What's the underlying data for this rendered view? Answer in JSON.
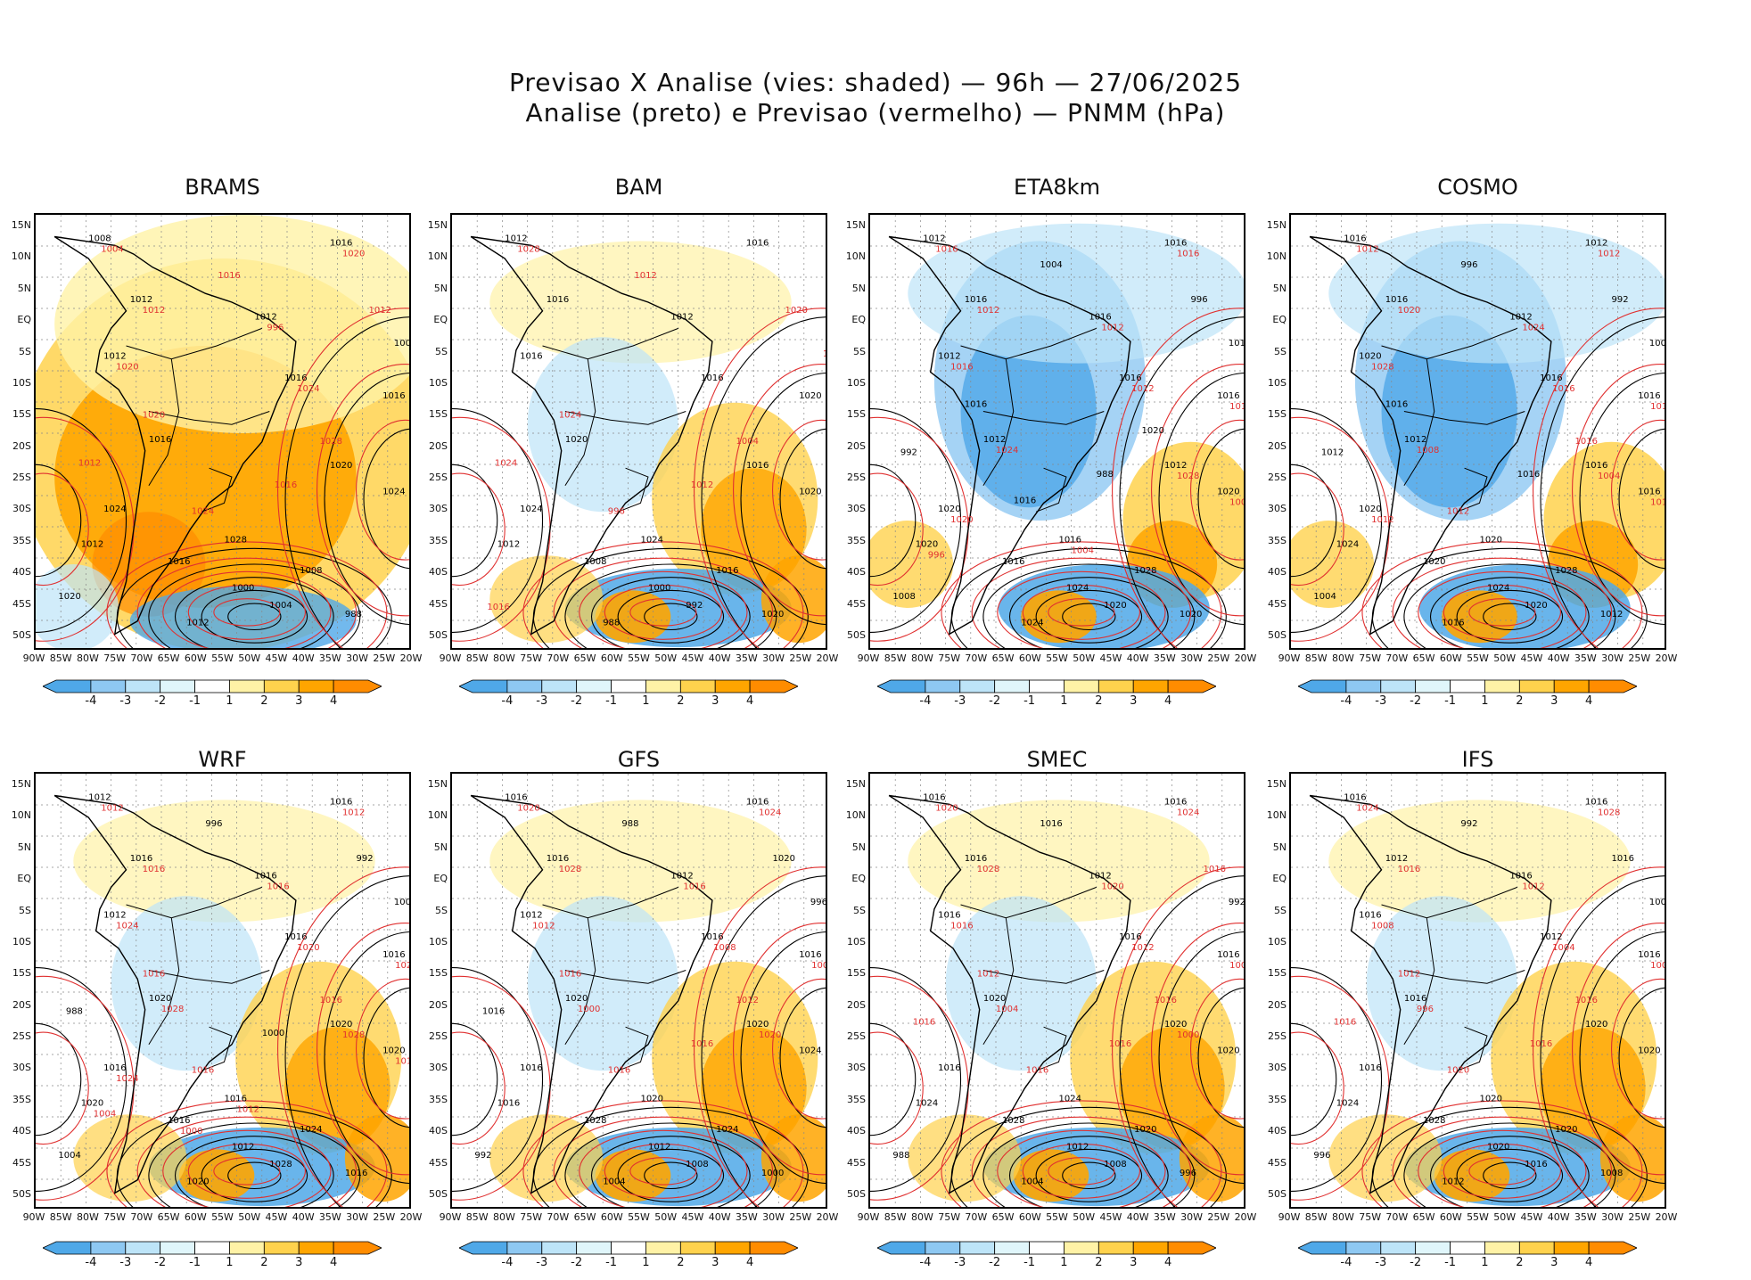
{
  "title_line1": "Previsao X Analise (vies: shaded) — 96h — 27/06/2025",
  "title_line2": "Analise (preto) e Previsao (vermelho) — PNMM (hPa)",
  "lat_labels": [
    "15N",
    "10N",
    "5N",
    "EQ",
    "5S",
    "10S",
    "15S",
    "20S",
    "25S",
    "30S",
    "35S",
    "40S",
    "45S",
    "50S"
  ],
  "lon_labels": [
    "90W",
    "85W",
    "80W",
    "75W",
    "70W",
    "65W",
    "60W",
    "55W",
    "50W",
    "45W",
    "40W",
    "35W",
    "30W",
    "25W",
    "20W"
  ],
  "colorbar": {
    "labels": [
      "-4",
      "-3",
      "-2",
      "-1",
      "1",
      "2",
      "3",
      "4"
    ],
    "colors": [
      "#4fa8e8",
      "#8ec8f2",
      "#bde4f8",
      "#e0f6fb",
      "#ffffff",
      "#fff2a6",
      "#ffd24d",
      "#ffa500",
      "#ff8c00"
    ]
  },
  "colors": {
    "analysis_line": "#000000",
    "forecast_line": "#e03030"
  },
  "models": [
    {
      "name": "BRAMS",
      "bias": "positive",
      "labels": {
        "black": [
          "1008",
          "1016",
          "1012",
          "1012",
          "1012",
          "1016",
          "1016",
          "1016",
          "1020",
          "1024",
          "1024",
          "1028",
          "1012",
          "1016",
          "1008",
          "1000",
          "1004",
          "1012",
          "988",
          "1004",
          "1020"
        ],
        "red": [
          "1016",
          "1012",
          "1012",
          "1016",
          "1020",
          "1028",
          "1024",
          "1004",
          "1020",
          "1012",
          "996",
          "1020",
          "1024"
        ]
      }
    },
    {
      "name": "BAM",
      "bias": "mixed",
      "labels": {
        "black": [
          "1012",
          "1016",
          "1016",
          "1012",
          "1016",
          "1016",
          "1020",
          "1020",
          "1016",
          "1024",
          "1020",
          "1024",
          "1012",
          "1008",
          "1016",
          "1000",
          "992",
          "988",
          "1020"
        ],
        "red": [
          "1016",
          "1016",
          "1012",
          "1020",
          "1024",
          "1012",
          "1024",
          "1004",
          "996",
          "1028"
        ]
      }
    },
    {
      "name": "ETA8km",
      "bias": "negative",
      "labels": {
        "black": [
          "1012",
          "1016",
          "1016",
          "1016",
          "1012",
          "1016",
          "1016",
          "1012",
          "1012",
          "1020",
          "1020",
          "1016",
          "1020",
          "1016",
          "1028",
          "1024",
          "1020",
          "1024",
          "1020",
          "1012",
          "1008",
          "1004",
          "996",
          "992",
          "988",
          "1016",
          "1020",
          "1016"
        ],
        "red": [
          "1016",
          "1016",
          "1012",
          "1012",
          "1016",
          "1012",
          "1016",
          "1024",
          "1028",
          "1020",
          "1008",
          "1004",
          "996"
        ]
      }
    },
    {
      "name": "COSMO",
      "bias": "negative",
      "labels": {
        "black": [
          "1016",
          "1012",
          "1016",
          "1012",
          "1020",
          "1016",
          "1016",
          "1012",
          "1016",
          "1020",
          "1016",
          "1020",
          "1024",
          "1020",
          "1028",
          "1024",
          "1020",
          "1016",
          "1012",
          "1008",
          "1004",
          "996",
          "992",
          "1012",
          "1016",
          "1016"
        ],
        "red": [
          "1016",
          "1012",
          "1012",
          "1012",
          "1020",
          "1024",
          "1028",
          "1016",
          "1012",
          "1008",
          "1004",
          "1012",
          "1016"
        ]
      }
    },
    {
      "name": "WRF",
      "bias": "mixed",
      "labels": {
        "black": [
          "1012",
          "1016",
          "1016",
          "1016",
          "1012",
          "1016",
          "1016",
          "1020",
          "1020",
          "1016",
          "1020",
          "1016",
          "1020",
          "1016",
          "1024",
          "1012",
          "1028",
          "1020",
          "1016",
          "1008",
          "1004",
          "996",
          "992",
          "988",
          "1000"
        ],
        "red": [
          "1016",
          "1016",
          "1016",
          "1012",
          "1012",
          "1016",
          "1016",
          "1024",
          "1020",
          "1024",
          "1028",
          "1028",
          "1024",
          "1016",
          "1012",
          "1004",
          "1000"
        ]
      }
    },
    {
      "name": "GFS",
      "bias": "mixed",
      "labels": {
        "black": [
          "1016",
          "1016",
          "1016",
          "1012",
          "1012",
          "1016",
          "1016",
          "1020",
          "1020",
          "1016",
          "1024",
          "1020",
          "1016",
          "1028",
          "1024",
          "1012",
          "1008",
          "1004",
          "1000",
          "996",
          "992",
          "988",
          "1020",
          "1016"
        ],
        "red": [
          "1016",
          "1016",
          "1012",
          "1016",
          "1020",
          "1024",
          "1028",
          "1016",
          "1012",
          "1008",
          "1004",
          "1000",
          "1020"
        ]
      }
    },
    {
      "name": "SMEC",
      "bias": "mixed",
      "labels": {
        "black": [
          "1016",
          "1016",
          "1016",
          "1012",
          "1016",
          "1016",
          "1016",
          "1020",
          "1020",
          "1016",
          "1020",
          "1024",
          "1024",
          "1028",
          "1020",
          "1012",
          "1008",
          "1004",
          "996",
          "992",
          "988",
          "1016"
        ],
        "red": [
          "1016",
          "1016",
          "1016",
          "1012",
          "1016",
          "1016",
          "1020",
          "1024",
          "1028",
          "1020",
          "1016",
          "1012",
          "1008",
          "1004",
          "1000"
        ]
      }
    },
    {
      "name": "IFS",
      "bias": "mixed",
      "labels": {
        "black": [
          "1016",
          "1016",
          "1012",
          "1016",
          "1016",
          "1012",
          "1016",
          "1016",
          "1020",
          "1016",
          "1020",
          "1020",
          "1024",
          "1028",
          "1020",
          "1020",
          "1016",
          "1012",
          "1008",
          "1004",
          "996",
          "992",
          "1016"
        ],
        "red": [
          "1016",
          "1016",
          "1012",
          "1016",
          "1020",
          "1024",
          "1028",
          "1016",
          "1012",
          "1008",
          "1004",
          "1000",
          "996"
        ]
      }
    }
  ]
}
